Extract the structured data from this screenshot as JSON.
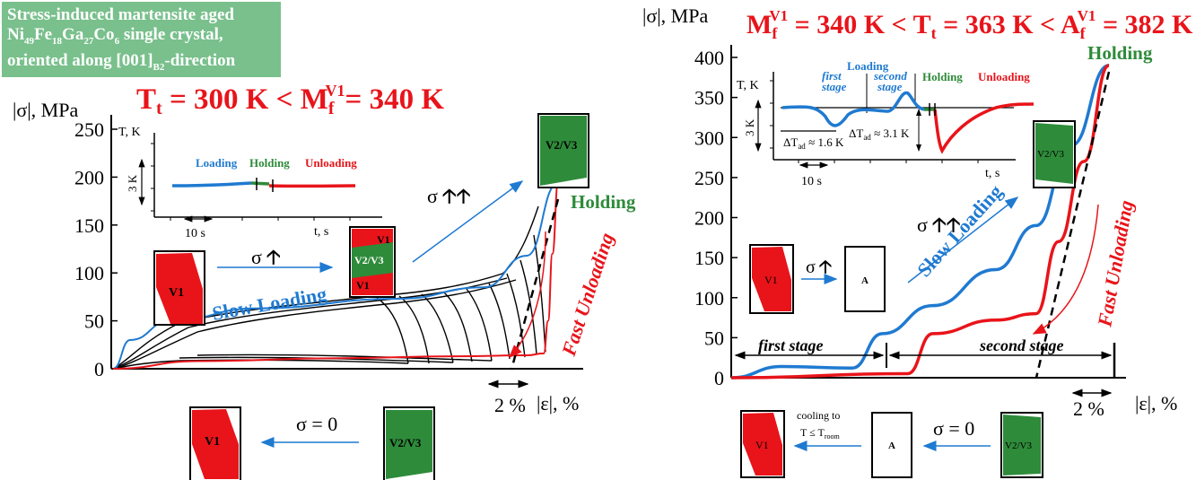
{
  "info_box": {
    "line1": "Stress-induced martensite aged",
    "line2_parts": [
      "Ni",
      "49",
      "Fe",
      "18",
      "Ga",
      "27",
      "Co",
      "6",
      " single crystal,"
    ],
    "line3_parts": [
      "oriented along [001]",
      "B2",
      "-direction"
    ],
    "bg_color": "#79c08c"
  },
  "left_panel": {
    "title": {
      "lhs": "T",
      "lhs_sub": "t",
      "mid": " = 300 K < M",
      "sub": "f",
      "sup": "V1",
      "rhs": "= 340 K"
    },
    "inset": {
      "ylabel": "T, K",
      "xlabel": "t, s",
      "scale_y": "3 K",
      "scale_x": "10 s",
      "phases": [
        "Loading",
        "Holding",
        "Unloading"
      ]
    },
    "annotations": {
      "slow": "Slow Loading",
      "fast": "Fast Unloading",
      "holding": "Holding",
      "sigma_up": "σ",
      "sigma_upup": "σ",
      "sigma_zero": "σ = 0",
      "strain_scale": "2 %"
    },
    "boxes": {
      "v1": "V1",
      "v23": "V2/V3",
      "stack": [
        "V1",
        "V2/V3",
        "V1"
      ]
    }
  },
  "right_panel": {
    "title": {
      "a": "M",
      "a_sub": "f",
      "a_sup": "V1",
      "b": " = 340 K < T",
      "b_sub": "t",
      "c": " = 363 K < A",
      "c_sub": "f",
      "c_sup": "V1",
      "d": " = 382 K"
    },
    "inset": {
      "ylabel": "T, K",
      "xlabel": "t, s",
      "scale_y": "3 K",
      "scale_x": "10 s",
      "loading": "Loading",
      "first": [
        "first",
        "stage"
      ],
      "second": [
        "second",
        "stage"
      ],
      "holding": "Holding",
      "unloading": "Unloading",
      "dt1": "ΔT",
      "dt1_sub": "ad",
      "dt1_val": " ≈ 1.6 K",
      "dt2": "ΔT",
      "dt2_sub": "ad",
      "dt2_val": " ≈ 3.1 K"
    },
    "annotations": {
      "slow": "Slow Loading",
      "fast": "Fast Unloading",
      "holding": "Holding",
      "sigma_up": "σ",
      "sigma_upup": "σ",
      "sigma_zero": "σ = 0",
      "strain_scale": "2 %",
      "first_stage": "first stage",
      "second_stage": "second stage",
      "cooling1": "cooling to",
      "cooling2": "T ≤ T",
      "cooling_sub": "room"
    },
    "boxes": {
      "v1": "V1",
      "a": "A",
      "v23": "V2/V3"
    }
  },
  "colors": {
    "red": "#e8141a",
    "blue": "#1f7ad1",
    "green": "#2e8b3a",
    "black": "#000000"
  },
  "chart_data": [
    {
      "type": "line",
      "ylabel": "|σ|, MPa",
      "xlabel": "|ε|, %",
      "yticks": [
        0,
        50,
        100,
        150,
        200,
        250
      ],
      "ylim": [
        0,
        280
      ],
      "x_scale_note": "2 %",
      "series": [
        {
          "name": "Slow Loading",
          "x": [
            0,
            0.6,
            2,
            5,
            10,
            13,
            14.5,
            15.6
          ],
          "y": [
            0,
            30,
            50,
            63,
            73,
            85,
            118,
            194
          ]
        },
        {
          "name": "Fast Unloading",
          "x": [
            15.6,
            15.4,
            15.25,
            15.1,
            14.5,
            12,
            8,
            3,
            0
          ],
          "y": [
            194,
            120,
            50,
            16,
            14,
            13,
            11,
            8,
            0
          ]
        }
      ]
    },
    {
      "type": "line",
      "ylabel": "|σ|, MPa",
      "xlabel": "|ε|, %",
      "yticks": [
        0,
        50,
        100,
        150,
        200,
        250,
        300,
        350,
        400
      ],
      "ylim": [
        0,
        420
      ],
      "x_scale_note": "2 %",
      "series": [
        {
          "name": "Slow Loading",
          "x": [
            0,
            2,
            4.8,
            6,
            8,
            10.5,
            12.1,
            13.5,
            15
          ],
          "y": [
            0,
            14,
            12,
            55,
            90,
            135,
            190,
            290,
            390
          ]
        },
        {
          "name": "Fast Unloading",
          "x": [
            15,
            14,
            13,
            12.1,
            10.5,
            8,
            7,
            0
          ],
          "y": [
            390,
            270,
            170,
            80,
            72,
            55,
            5,
            0
          ]
        }
      ]
    }
  ]
}
